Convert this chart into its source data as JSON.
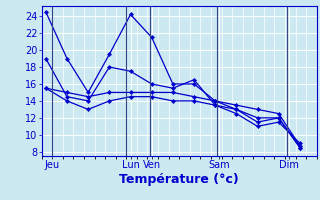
{
  "background_color": "#cce8f0",
  "grid_color": "#ffffff",
  "line_color": "#0000cc",
  "separator_color": "#334488",
  "xlabel": "Température (°c)",
  "ylim": [
    7.5,
    25.2
  ],
  "xlim": [
    -0.2,
    12.5
  ],
  "ytick_positions": [
    8,
    10,
    12,
    14,
    16,
    18,
    20,
    22,
    24
  ],
  "x_tick_positions": [
    0.3,
    4.0,
    5.0,
    8.2,
    11.5
  ],
  "x_tick_labels": [
    "Jeu",
    "Lun",
    "Ven",
    "Sam",
    "Dim"
  ],
  "x_separator_positions": [
    0.3,
    3.8,
    4.9,
    8.1,
    11.4
  ],
  "series": [
    [
      24.5,
      19.0,
      15.0,
      19.5,
      24.2,
      21.5,
      16.0,
      16.0,
      14.0,
      13.0,
      12.0,
      12.0,
      8.5
    ],
    [
      19.0,
      14.5,
      14.0,
      18.0,
      17.5,
      16.0,
      15.5,
      16.5,
      13.5,
      13.0,
      11.5,
      12.0,
      8.5
    ],
    [
      15.5,
      15.0,
      14.5,
      15.0,
      15.0,
      15.0,
      15.0,
      14.5,
      14.0,
      13.5,
      13.0,
      12.5,
      8.7
    ],
    [
      15.5,
      14.0,
      13.0,
      14.0,
      14.5,
      14.5,
      14.0,
      14.0,
      13.5,
      12.5,
      11.0,
      11.5,
      9.0
    ]
  ],
  "x_values": [
    0,
    1,
    2,
    3,
    4,
    5,
    6,
    7,
    8,
    9,
    10,
    11,
    12
  ],
  "xlabel_fontsize": 9,
  "tick_fontsize": 7,
  "figsize": [
    3.2,
    2.0
  ],
  "dpi": 100
}
